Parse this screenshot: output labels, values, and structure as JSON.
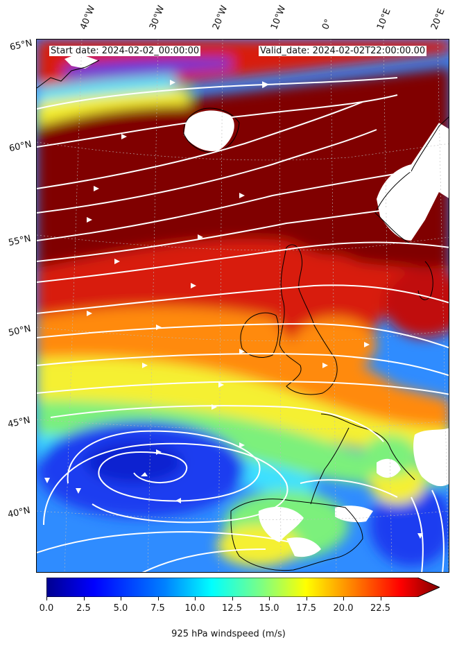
{
  "map": {
    "start_label": "Start date: 2024-02-02_00:00:00",
    "valid_label": "Valid_date: 2024-02-02T22:00:00.00",
    "lon_labels": [
      "40°W",
      "30°W",
      "20°W",
      "10°W",
      "0°",
      "10°E",
      "20°E"
    ],
    "lat_labels": [
      "65°N",
      "60°N",
      "55°N",
      "50°N",
      "45°N",
      "40°N"
    ],
    "colors": {
      "ocean_low": "#1a3cf0",
      "mid_blue": "#2f8cff",
      "cyan": "#3ee0ff",
      "green": "#7cf07c",
      "yellow": "#f5f032",
      "orange": "#ff8a10",
      "red": "#d81a0a",
      "darkred": "#800000",
      "land_gap": "#ffffff",
      "streamline": "#ffffff",
      "coastline": "#000000"
    }
  },
  "colorbar": {
    "ticks": [
      "0.0",
      "2.5",
      "5.0",
      "7.5",
      "10.0",
      "12.5",
      "15.0",
      "17.5",
      "20.0",
      "22.5"
    ],
    "min": 0,
    "max": 25,
    "extend": "max",
    "label": "925 hPa windspeed (m/s)",
    "stops": [
      "#00008f",
      "#0000ff",
      "#0080ff",
      "#00ffff",
      "#80ff80",
      "#ffff00",
      "#ff8000",
      "#ff0000",
      "#800000"
    ]
  }
}
